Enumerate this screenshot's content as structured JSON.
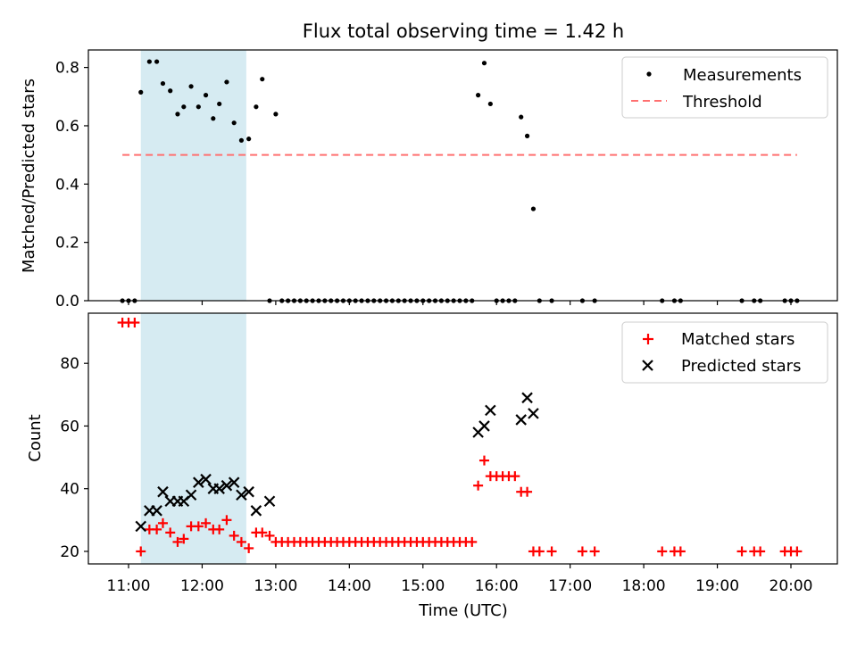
{
  "title": "Flux total observing time = 1.42 h",
  "colors": {
    "measurement": "#000000",
    "threshold": "#ff7070",
    "matched": "#ff0000",
    "predicted": "#000000",
    "shade": "#add8e6"
  },
  "chart_data": [
    {
      "type": "scatter",
      "ylabel": "Matched/Predicted stars",
      "ylim": [
        0,
        0.86
      ],
      "yticks": [
        "0.0",
        "0.2",
        "0.4",
        "0.6",
        "0.8"
      ],
      "legend_position": "top-right",
      "legend": [
        "Measurements",
        "Threshold"
      ],
      "threshold": {
        "name": "Threshold",
        "value": 0.5,
        "x_start": "10:55",
        "x_end": "20:05"
      },
      "highlight": {
        "x_start": "11:10",
        "x_end": "12:36"
      },
      "series": [
        {
          "name": "Measurements",
          "points": [
            [
              "10:55",
              0
            ],
            [
              "11:00",
              0
            ],
            [
              "11:05",
              0
            ],
            [
              "11:10",
              0.715
            ],
            [
              "11:17",
              0.82
            ],
            [
              "11:23",
              0.82
            ],
            [
              "11:28",
              0.745
            ],
            [
              "11:34",
              0.72
            ],
            [
              "11:40",
              0.64
            ],
            [
              "11:45",
              0.665
            ],
            [
              "11:51",
              0.735
            ],
            [
              "11:57",
              0.665
            ],
            [
              "12:03",
              0.705
            ],
            [
              "12:09",
              0.625
            ],
            [
              "12:14",
              0.675
            ],
            [
              "12:20",
              0.75
            ],
            [
              "12:26",
              0.61
            ],
            [
              "12:32",
              0.55
            ],
            [
              "12:38",
              0.555
            ],
            [
              "12:44",
              0.665
            ],
            [
              "12:49",
              0.76
            ],
            [
              "12:55",
              0
            ],
            [
              "13:00",
              0.64
            ],
            [
              "13:05",
              0
            ],
            [
              "13:10",
              0
            ],
            [
              "13:15",
              0
            ],
            [
              "13:20",
              0
            ],
            [
              "13:25",
              0
            ],
            [
              "13:30",
              0
            ],
            [
              "13:35",
              0
            ],
            [
              "13:40",
              0
            ],
            [
              "13:45",
              0
            ],
            [
              "13:50",
              0
            ],
            [
              "13:55",
              0
            ],
            [
              "14:00",
              0
            ],
            [
              "14:05",
              0
            ],
            [
              "14:10",
              0
            ],
            [
              "14:15",
              0
            ],
            [
              "14:20",
              0
            ],
            [
              "14:25",
              0
            ],
            [
              "14:30",
              0
            ],
            [
              "14:35",
              0
            ],
            [
              "14:40",
              0
            ],
            [
              "14:45",
              0
            ],
            [
              "14:50",
              0
            ],
            [
              "14:55",
              0
            ],
            [
              "15:00",
              0
            ],
            [
              "15:05",
              0
            ],
            [
              "15:10",
              0
            ],
            [
              "15:15",
              0
            ],
            [
              "15:20",
              0
            ],
            [
              "15:25",
              0
            ],
            [
              "15:30",
              0
            ],
            [
              "15:35",
              0
            ],
            [
              "15:40",
              0
            ],
            [
              "15:45",
              0.705
            ],
            [
              "15:50",
              0.815
            ],
            [
              "15:55",
              0.675
            ],
            [
              "16:00",
              0
            ],
            [
              "16:05",
              0
            ],
            [
              "16:10",
              0
            ],
            [
              "16:15",
              0
            ],
            [
              "16:20",
              0.63
            ],
            [
              "16:25",
              0.565
            ],
            [
              "16:30",
              0.315
            ],
            [
              "16:35",
              0
            ],
            [
              "16:45",
              0
            ],
            [
              "17:10",
              0
            ],
            [
              "17:20",
              0
            ],
            [
              "18:15",
              0
            ],
            [
              "18:25",
              0
            ],
            [
              "18:30",
              0
            ],
            [
              "19:20",
              0
            ],
            [
              "19:30",
              0
            ],
            [
              "19:35",
              0
            ],
            [
              "19:55",
              0
            ],
            [
              "20:00",
              0
            ],
            [
              "20:05",
              0
            ]
          ]
        }
      ]
    },
    {
      "type": "scatter",
      "xlabel": "Time (UTC)",
      "ylabel": "Count",
      "ylim": [
        16,
        96
      ],
      "yticks": [
        "20",
        "40",
        "60",
        "80"
      ],
      "xticks": [
        "11:00",
        "12:00",
        "13:00",
        "14:00",
        "15:00",
        "16:00",
        "17:00",
        "18:00",
        "19:00",
        "20:00"
      ],
      "legend_position": "top-right",
      "legend": [
        "Matched stars",
        "Predicted stars"
      ],
      "highlight": {
        "x_start": "11:10",
        "x_end": "12:36"
      },
      "series": [
        {
          "name": "Matched stars",
          "marker": "+",
          "points": [
            [
              "10:55",
              93
            ],
            [
              "11:00",
              93
            ],
            [
              "11:05",
              93
            ],
            [
              "11:10",
              20
            ],
            [
              "11:17",
              27
            ],
            [
              "11:23",
              27
            ],
            [
              "11:28",
              29
            ],
            [
              "11:34",
              26
            ],
            [
              "11:40",
              23
            ],
            [
              "11:45",
              24
            ],
            [
              "11:51",
              28
            ],
            [
              "11:57",
              28
            ],
            [
              "12:03",
              29
            ],
            [
              "12:09",
              27
            ],
            [
              "12:14",
              27
            ],
            [
              "12:20",
              30
            ],
            [
              "12:26",
              25
            ],
            [
              "12:32",
              23
            ],
            [
              "12:38",
              21
            ],
            [
              "12:44",
              26
            ],
            [
              "12:49",
              26
            ],
            [
              "12:55",
              25
            ],
            [
              "13:00",
              23
            ],
            [
              "13:05",
              23
            ],
            [
              "13:10",
              23
            ],
            [
              "13:15",
              23
            ],
            [
              "13:20",
              23
            ],
            [
              "13:25",
              23
            ],
            [
              "13:30",
              23
            ],
            [
              "13:35",
              23
            ],
            [
              "13:40",
              23
            ],
            [
              "13:45",
              23
            ],
            [
              "13:50",
              23
            ],
            [
              "13:55",
              23
            ],
            [
              "14:00",
              23
            ],
            [
              "14:05",
              23
            ],
            [
              "14:10",
              23
            ],
            [
              "14:15",
              23
            ],
            [
              "14:20",
              23
            ],
            [
              "14:25",
              23
            ],
            [
              "14:30",
              23
            ],
            [
              "14:35",
              23
            ],
            [
              "14:40",
              23
            ],
            [
              "14:45",
              23
            ],
            [
              "14:50",
              23
            ],
            [
              "14:55",
              23
            ],
            [
              "15:00",
              23
            ],
            [
              "15:05",
              23
            ],
            [
              "15:10",
              23
            ],
            [
              "15:15",
              23
            ],
            [
              "15:20",
              23
            ],
            [
              "15:25",
              23
            ],
            [
              "15:30",
              23
            ],
            [
              "15:35",
              23
            ],
            [
              "15:40",
              23
            ],
            [
              "15:45",
              41
            ],
            [
              "15:50",
              49
            ],
            [
              "15:55",
              44
            ],
            [
              "16:00",
              44
            ],
            [
              "16:05",
              44
            ],
            [
              "16:10",
              44
            ],
            [
              "16:15",
              44
            ],
            [
              "16:20",
              39
            ],
            [
              "16:25",
              39
            ],
            [
              "16:30",
              20
            ],
            [
              "16:35",
              20
            ],
            [
              "16:45",
              20
            ],
            [
              "17:10",
              20
            ],
            [
              "17:20",
              20
            ],
            [
              "18:15",
              20
            ],
            [
              "18:25",
              20
            ],
            [
              "18:30",
              20
            ],
            [
              "19:20",
              20
            ],
            [
              "19:30",
              20
            ],
            [
              "19:35",
              20
            ],
            [
              "19:55",
              20
            ],
            [
              "20:00",
              20
            ],
            [
              "20:05",
              20
            ]
          ]
        },
        {
          "name": "Predicted stars",
          "marker": "x",
          "points": [
            [
              "11:10",
              28
            ],
            [
              "11:17",
              33
            ],
            [
              "11:23",
              33
            ],
            [
              "11:28",
              39
            ],
            [
              "11:34",
              36
            ],
            [
              "11:40",
              36
            ],
            [
              "11:45",
              36
            ],
            [
              "11:51",
              38
            ],
            [
              "11:57",
              42
            ],
            [
              "12:03",
              43
            ],
            [
              "12:09",
              40
            ],
            [
              "12:14",
              40
            ],
            [
              "12:20",
              41
            ],
            [
              "12:26",
              42
            ],
            [
              "12:32",
              38
            ],
            [
              "12:38",
              39
            ],
            [
              "12:44",
              33
            ],
            [
              "12:55",
              36
            ],
            [
              "15:45",
              58
            ],
            [
              "15:50",
              60
            ],
            [
              "15:55",
              65
            ],
            [
              "16:20",
              62
            ],
            [
              "16:25",
              69
            ],
            [
              "16:30",
              64
            ]
          ]
        }
      ]
    }
  ]
}
